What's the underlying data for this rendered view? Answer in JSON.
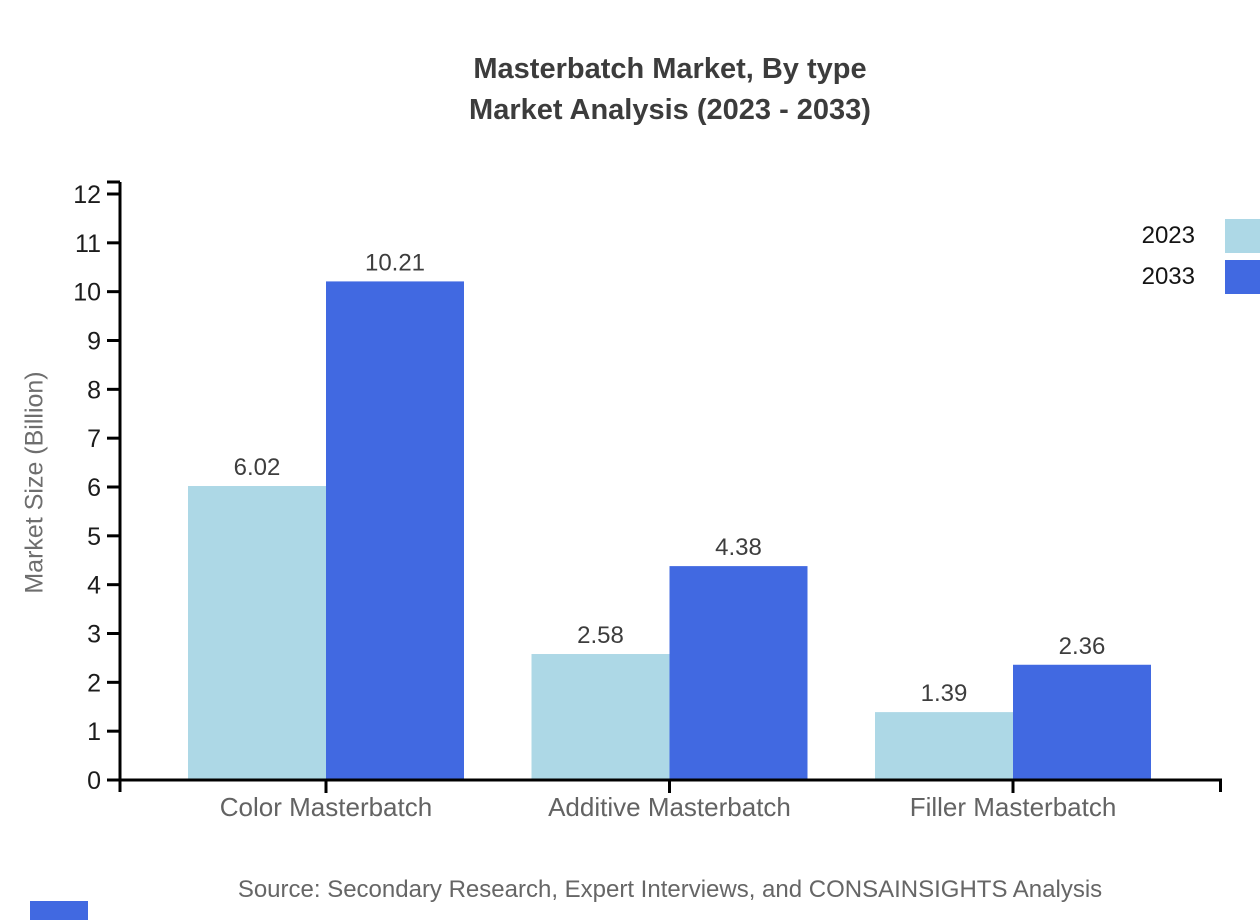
{
  "title": {
    "line1": "Masterbatch Market, By type",
    "line2": "Market Analysis (2023 - 2033)"
  },
  "chart_data": {
    "type": "bar",
    "title": "Masterbatch Market, By type — Market Analysis (2023 - 2033)",
    "categories": [
      "Color Masterbatch",
      "Additive Masterbatch",
      "Filler Masterbatch"
    ],
    "series": [
      {
        "name": "2023",
        "color": "#ADD8E6",
        "values": [
          6.02,
          2.58,
          1.39
        ]
      },
      {
        "name": "2033",
        "color": "#4169E1",
        "values": [
          10.21,
          4.38,
          2.36
        ]
      }
    ],
    "value_labels": [
      "6.02",
      "10.21",
      "2.58",
      "4.38",
      "1.39",
      "2.36"
    ],
    "xlabel": "",
    "ylabel": "Market Size (Billion)",
    "ylim": [
      0,
      12
    ],
    "ytick_step": 1,
    "grid": false,
    "legend_position": "top-right",
    "axis_color": "#000000",
    "tick_label_color": "#1c1c1c",
    "value_label_color": "#3d3d3d",
    "category_label_color": "#636363"
  },
  "legend": {
    "items": [
      {
        "label": "2023",
        "color": "#ADD8E6"
      },
      {
        "label": "2033",
        "color": "#4169E1"
      }
    ]
  },
  "footer": {
    "source": "Source: Secondary Research, Expert Interviews, and CONSAINSIGHTS Analysis",
    "logo_color": "#4169E1"
  }
}
